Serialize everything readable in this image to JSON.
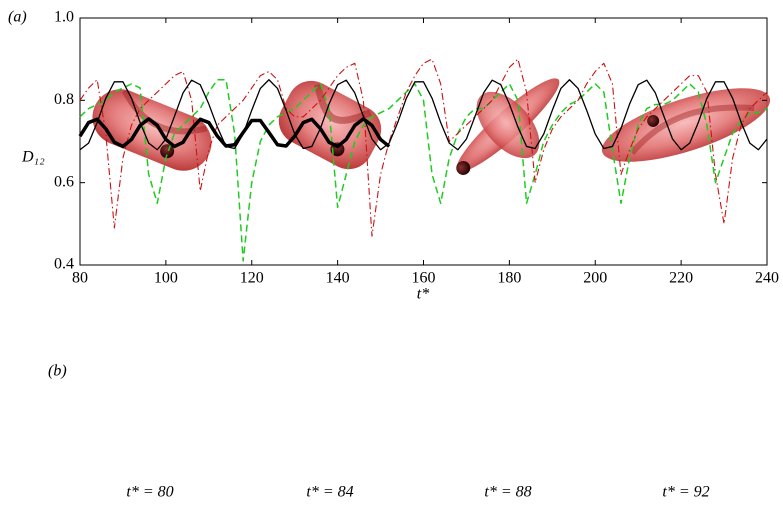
{
  "chart_data": {
    "type": "line",
    "panel_label": "(a)",
    "xlabel": "t*",
    "ylabel": "D₁₂",
    "xlim": [
      80,
      240
    ],
    "ylim": [
      0.4,
      1
    ],
    "xticks": [
      80,
      100,
      120,
      140,
      160,
      180,
      200,
      220,
      240
    ],
    "yticks": [
      0.4,
      0.6,
      0.8,
      {
        "value": 1,
        "label": "1.0"
      }
    ],
    "x": [
      80,
      82,
      84,
      86,
      88,
      90,
      92,
      94,
      96,
      98,
      100,
      102,
      104,
      106,
      108,
      110,
      112,
      114,
      116,
      118,
      120,
      122,
      124,
      126,
      128,
      130,
      132,
      134,
      136,
      138,
      140,
      142,
      144,
      146,
      148,
      150,
      152,
      154,
      156,
      158,
      160,
      162,
      164,
      166,
      168,
      170,
      172,
      174,
      176,
      178,
      180,
      182,
      184,
      186,
      188,
      190,
      192,
      194,
      196,
      198,
      200,
      202,
      204,
      206,
      208,
      210,
      212,
      214,
      216,
      218,
      220,
      222,
      224,
      226,
      228,
      230,
      232,
      234,
      236,
      238,
      240
    ],
    "series": [
      {
        "color": "#1fcc1f",
        "dash": "dashed",
        "width": 1.5,
        "values": [
          0.76,
          0.78,
          0.79,
          0.8,
          0.82,
          0.83,
          0.84,
          0.83,
          0.62,
          0.55,
          0.66,
          0.72,
          0.74,
          0.76,
          0.78,
          0.82,
          0.85,
          0.85,
          0.72,
          0.41,
          0.6,
          0.7,
          0.74,
          0.76,
          0.77,
          0.78,
          0.8,
          0.82,
          0.84,
          0.78,
          0.54,
          0.62,
          0.7,
          0.74,
          0.76,
          0.77,
          0.78,
          0.8,
          0.82,
          0.84,
          0.8,
          0.62,
          0.55,
          0.66,
          0.72,
          0.76,
          0.78,
          0.78,
          0.8,
          0.82,
          0.84,
          0.8,
          0.55,
          0.62,
          0.7,
          0.74,
          0.77,
          0.79,
          0.8,
          0.82,
          0.84,
          0.82,
          0.68,
          0.55,
          0.66,
          0.74,
          0.78,
          0.79,
          0.79,
          0.8,
          0.82,
          0.84,
          0.82,
          0.74,
          0.6,
          0.66,
          0.72,
          0.75,
          0.77,
          0.77,
          0.78
        ]
      },
      {
        "color": "#cc1111",
        "dash": "dashdot",
        "width": 1.1,
        "values": [
          0.8,
          0.83,
          0.85,
          0.72,
          0.49,
          0.66,
          0.74,
          0.78,
          0.8,
          0.82,
          0.84,
          0.86,
          0.87,
          0.8,
          0.58,
          0.68,
          0.74,
          0.76,
          0.78,
          0.8,
          0.83,
          0.86,
          0.87,
          0.85,
          0.78,
          0.76,
          0.76,
          0.78,
          0.8,
          0.83,
          0.86,
          0.88,
          0.89,
          0.8,
          0.47,
          0.62,
          0.7,
          0.76,
          0.82,
          0.86,
          0.89,
          0.9,
          0.84,
          0.7,
          0.72,
          0.74,
          0.76,
          0.78,
          0.8,
          0.84,
          0.88,
          0.9,
          0.82,
          0.6,
          0.68,
          0.73,
          0.76,
          0.78,
          0.8,
          0.84,
          0.87,
          0.89,
          0.84,
          0.62,
          0.68,
          0.73,
          0.76,
          0.78,
          0.8,
          0.82,
          0.84,
          0.86,
          0.86,
          0.82,
          0.62,
          0.5,
          0.66,
          0.74,
          0.78,
          0.8,
          0.82
        ]
      },
      {
        "color": "#000000",
        "dash": "solid",
        "width": 1.3,
        "values": [
          0.68,
          0.696,
          0.746,
          0.805,
          0.845,
          0.845,
          0.805,
          0.746,
          0.696,
          0.68,
          0.706,
          0.761,
          0.818,
          0.849,
          0.838,
          0.791,
          0.735,
          0.688,
          0.683,
          0.718,
          0.776,
          0.829,
          0.85,
          0.829,
          0.776,
          0.718,
          0.683,
          0.688,
          0.732,
          0.791,
          0.838,
          0.849,
          0.818,
          0.761,
          0.706,
          0.68,
          0.696,
          0.746,
          0.805,
          0.845,
          0.845,
          0.805,
          0.746,
          0.696,
          0.68,
          0.706,
          0.761,
          0.818,
          0.849,
          0.838,
          0.791,
          0.735,
          0.688,
          0.683,
          0.718,
          0.776,
          0.829,
          0.85,
          0.829,
          0.776,
          0.718,
          0.683,
          0.688,
          0.732,
          0.791,
          0.838,
          0.849,
          0.818,
          0.761,
          0.706,
          0.68,
          0.696,
          0.746,
          0.805,
          0.845,
          0.845,
          0.805,
          0.746,
          0.696,
          0.68,
          0.706
        ]
      },
      {
        "color": "#000000",
        "dash": "solid",
        "width": 3.5,
        "values": [
          0.713,
          0.746,
          0.754,
          0.731,
          0.698,
          0.688,
          0.705,
          0.739,
          0.755,
          0.739,
          0.705,
          0.688,
          0.698,
          0.731,
          0.754,
          0.746,
          0.713,
          0.689,
          0.692,
          0.722,
          0.751,
          0.751,
          0.722,
          0.692,
          0.689,
          0.713,
          0.746,
          0.754,
          0.731,
          0.698,
          0.688,
          0.705,
          0.739,
          0.755,
          0.739,
          0.705,
          0.688,
          null,
          null,
          null,
          null,
          null,
          null,
          null,
          null,
          null,
          null,
          null,
          null,
          null,
          null,
          null,
          null,
          null,
          null,
          null,
          null,
          null,
          null,
          null,
          null,
          null,
          null,
          null,
          null,
          null,
          null,
          null,
          null,
          null,
          null,
          null,
          null,
          null,
          null,
          null,
          null,
          null,
          null,
          null,
          null
        ]
      }
    ]
  },
  "panel_b": {
    "label": "(b)",
    "captions": [
      "t* = 80",
      "t* = 84",
      "t* = 88",
      "t* = 92"
    ]
  }
}
